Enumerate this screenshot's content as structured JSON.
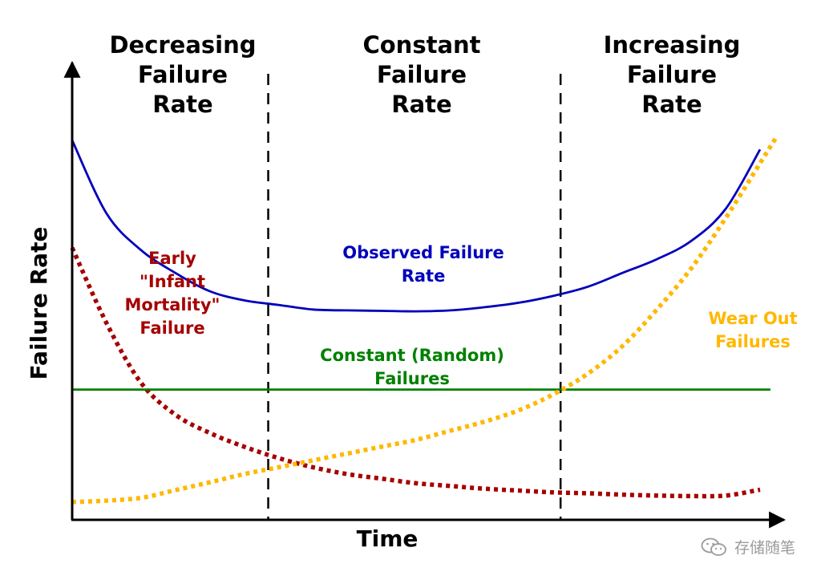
{
  "chart_data": {
    "type": "line",
    "xlabel": "Time",
    "ylabel": "Failure Rate",
    "regions": [
      {
        "name": "decreasing",
        "lines": [
          "Decreasing",
          "Failure",
          "Rate"
        ]
      },
      {
        "name": "constant",
        "lines": [
          "Constant",
          "Failure",
          "Rate"
        ]
      },
      {
        "name": "increasing",
        "lines": [
          "Increasing",
          "Failure",
          "Rate"
        ]
      }
    ],
    "x": [
      0,
      5,
      10,
      15,
      20,
      25,
      30,
      35,
      40,
      45,
      50,
      55,
      60,
      65,
      70,
      75,
      80,
      85,
      90,
      95,
      100
    ],
    "xlim": [
      0,
      100
    ],
    "ylim": [
      0,
      100
    ],
    "dividers": [
      28.5,
      71
    ],
    "series": [
      {
        "name": "Observed Failure Rate",
        "label_lines": [
          "Observed Failure",
          "Rate"
        ],
        "color": "#0000bb",
        "style": "solid",
        "values": [
          83,
          67,
          59,
          54,
          50,
          48,
          47,
          46,
          45.8,
          45.7,
          45.6,
          45.8,
          46.5,
          47.5,
          49,
          51,
          54,
          57,
          61,
          68,
          81
        ]
      },
      {
        "name": "Early \"Infant Mortality\" Failure",
        "label_lines": [
          "Early",
          "\"Infant",
          "Mortality\"",
          "Failure"
        ],
        "color": "#a50000",
        "style": "dotted",
        "values": [
          59.5,
          43,
          30,
          23,
          19,
          16,
          13.5,
          11.5,
          10,
          9,
          8,
          7.4,
          6.8,
          6.4,
          6,
          5.8,
          5.5,
          5.3,
          5.2,
          5.3,
          6.6
        ]
      },
      {
        "name": "Constant (Random) Failures",
        "label_lines": [
          "Constant (Random)",
          "Failures"
        ],
        "color": "#008000",
        "style": "solid",
        "values": [
          28.5,
          28.5,
          28.5,
          28.5,
          28.5,
          28.5,
          28.5,
          28.5,
          28.5,
          28.5,
          28.5,
          28.5,
          28.5,
          28.5,
          28.5,
          28.5,
          28.5,
          28.5,
          28.5,
          28.5,
          28.5
        ]
      },
      {
        "name": "Wear Out Failures",
        "label_lines": [
          "Wear Out",
          "Failures"
        ],
        "color": "#ffb800",
        "style": "dotted",
        "values": [
          3.9,
          4.2,
          4.8,
          6.5,
          8.2,
          10,
          11.5,
          13,
          14.5,
          16,
          17.5,
          19.5,
          21.5,
          24,
          27.5,
          32,
          38,
          46,
          55,
          66,
          78
        ]
      }
    ]
  },
  "watermark": {
    "text": "存储随笔",
    "icon": "wechat-icon"
  }
}
